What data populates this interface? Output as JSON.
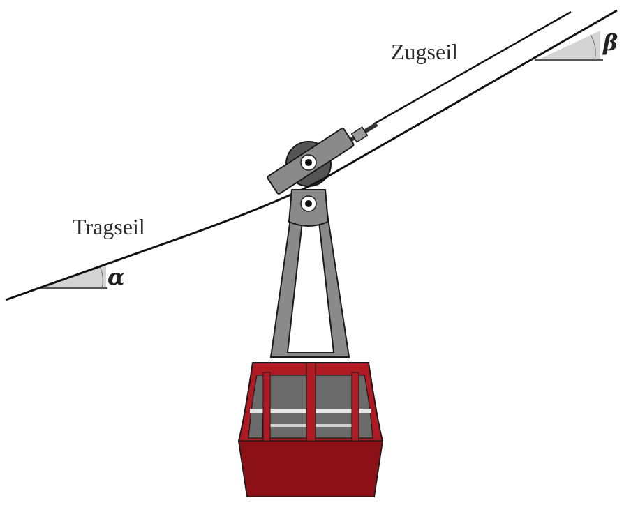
{
  "labels": {
    "zugseil": "Zugseil",
    "tragseil": "Tragseil",
    "alpha": "α",
    "beta": "β"
  },
  "colors": {
    "cabin_red": "#b01a22",
    "cabin_dark_red": "#8c1117",
    "hanger_gray": "#8a8a8a",
    "window_gray": "#6b6b6b",
    "angle_fill": "#d4d4d4",
    "rope": "#111111"
  }
}
